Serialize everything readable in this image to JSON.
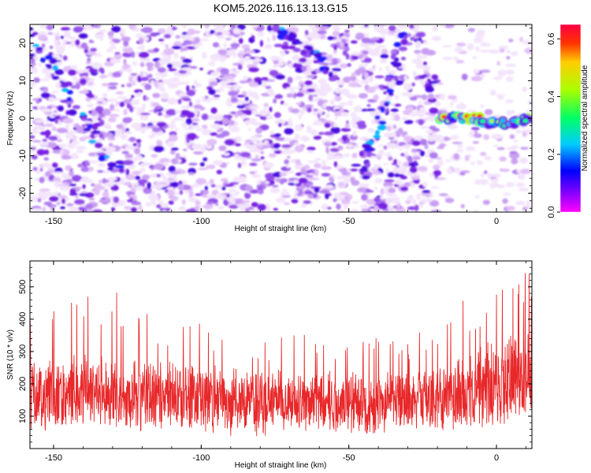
{
  "title": "KOM5.2026.116.13.13.G15",
  "colors": {
    "spectrogram_base": "#7a00e6",
    "snr_line": "#e8282a",
    "frame": "#000000"
  },
  "chart_data": [
    {
      "type": "heatmap",
      "title": "KOM5.2026.116.13.13.G15",
      "xlabel": "Height of straight line (km)",
      "ylabel": "Frequency (Hz)",
      "xlim": [
        -158,
        12
      ],
      "ylim": [
        -25,
        25
      ],
      "x_ticks": [
        -150,
        -100,
        -50,
        0
      ],
      "y_ticks": [
        -20,
        -10,
        0,
        10,
        20
      ],
      "colorbar": {
        "label": "Normalized spectral amplitude",
        "range": [
          0.0,
          0.65
        ],
        "ticks": [
          0.0,
          0.2,
          0.4,
          0.6
        ]
      },
      "features": [
        {
          "name": "descending streak 1",
          "from": [
            -158,
            23
          ],
          "to": [
            -128,
            -15
          ]
        },
        {
          "name": "descending streak 2",
          "from": [
            -75,
            25
          ],
          "to": [
            -55,
            12
          ]
        },
        {
          "name": "descending streak 3",
          "from": [
            -30,
            25
          ],
          "to": [
            -45,
            -15
          ]
        },
        {
          "name": "strong zero-frequency band",
          "from": [
            -18,
            0
          ],
          "to": [
            12,
            0
          ],
          "peak_amplitude": 0.65
        }
      ]
    },
    {
      "type": "line",
      "xlabel": "Height of straight line (km)",
      "ylabel": "SNR (10 * v/v)",
      "xlim": [
        -158,
        12
      ],
      "ylim": [
        0,
        580
      ],
      "x_ticks": [
        -150,
        -100,
        -50,
        0
      ],
      "y_ticks": [
        100,
        200,
        300,
        400,
        500
      ],
      "series": [
        {
          "name": "SNR",
          "x": [
            -158,
            -150,
            -140,
            -130,
            -120,
            -110,
            -100,
            -90,
            -80,
            -70,
            -60,
            -50,
            -40,
            -30,
            -20,
            -15,
            -10,
            -5,
            0,
            5,
            10,
            12
          ],
          "mean": [
            160,
            165,
            175,
            170,
            165,
            160,
            150,
            145,
            140,
            140,
            140,
            140,
            140,
            145,
            150,
            165,
            180,
            190,
            200,
            210,
            220,
            220
          ],
          "peak": [
            410,
            460,
            470,
            500,
            450,
            410,
            390,
            360,
            340,
            370,
            360,
            330,
            360,
            350,
            380,
            430,
            480,
            460,
            480,
            540,
            570,
            560
          ]
        }
      ]
    }
  ]
}
